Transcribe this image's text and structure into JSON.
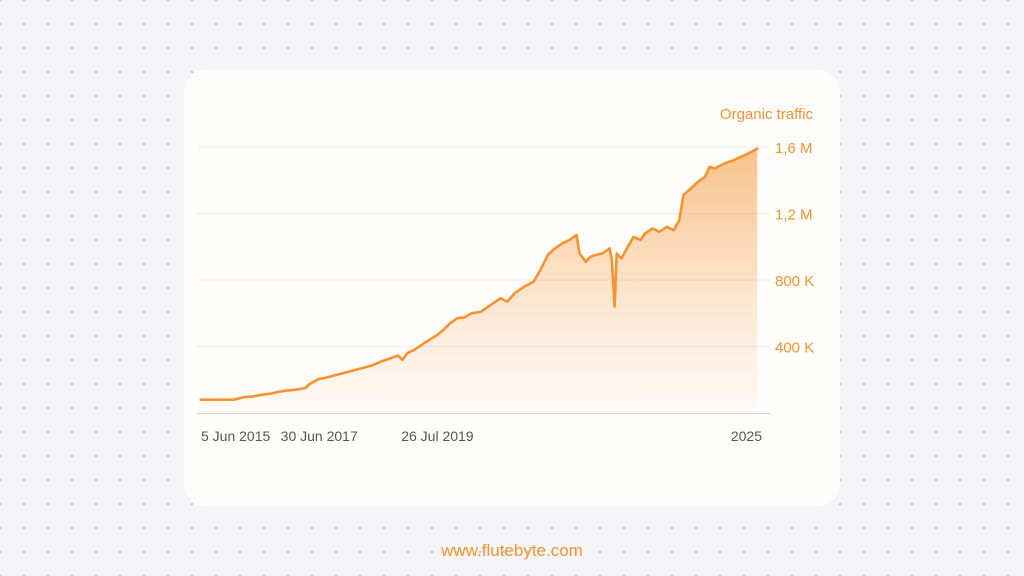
{
  "footer": {
    "url": "www.flutebyte.com"
  },
  "colors": {
    "accent": "#f6922f",
    "tick_text": "#555555",
    "grid": "#ececec"
  },
  "chart_data": {
    "type": "area",
    "ylabel": "Organic traffic",
    "y_tick_labels": [
      "400 K",
      "800 K",
      "1,2 M",
      "1,6 M"
    ],
    "y_tick_values": [
      400000,
      800000,
      1200000,
      1600000
    ],
    "ylim": [
      0,
      1600000
    ],
    "x_tick_labels": [
      "5 Jun 2015",
      "30 Jun 2017",
      "26 Jul 2019",
      "2025"
    ],
    "x_tick_values": [
      "2015-06-05",
      "2017-06-30",
      "2019-07-26",
      "2025-01-01"
    ],
    "xlim": [
      "2015-06-05",
      "2025-04-01"
    ],
    "grid": true,
    "series": [
      {
        "points": [
          [
            "2015-06-05",
            80000
          ],
          [
            "2015-10-01",
            80000
          ],
          [
            "2016-01-01",
            80000
          ],
          [
            "2016-03-01",
            95000
          ],
          [
            "2016-05-01",
            100000
          ],
          [
            "2016-07-01",
            110000
          ],
          [
            "2016-09-01",
            118000
          ],
          [
            "2016-10-01",
            125000
          ],
          [
            "2016-12-01",
            135000
          ],
          [
            "2017-02-01",
            140000
          ],
          [
            "2017-04-01",
            150000
          ],
          [
            "2017-05-01",
            175000
          ],
          [
            "2017-06-30",
            205000
          ],
          [
            "2017-08-01",
            210000
          ],
          [
            "2017-10-01",
            225000
          ],
          [
            "2017-12-01",
            240000
          ],
          [
            "2018-02-01",
            255000
          ],
          [
            "2018-04-01",
            270000
          ],
          [
            "2018-06-01",
            285000
          ],
          [
            "2018-08-01",
            310000
          ],
          [
            "2018-10-01",
            330000
          ],
          [
            "2018-11-15",
            345000
          ],
          [
            "2018-12-15",
            320000
          ],
          [
            "2019-01-15",
            360000
          ],
          [
            "2019-03-01",
            380000
          ],
          [
            "2019-05-01",
            420000
          ],
          [
            "2019-07-26",
            470000
          ],
          [
            "2019-09-01",
            500000
          ],
          [
            "2019-10-15",
            540000
          ],
          [
            "2019-12-01",
            570000
          ],
          [
            "2020-01-15",
            575000
          ],
          [
            "2020-03-01",
            600000
          ],
          [
            "2020-05-01",
            610000
          ],
          [
            "2020-07-01",
            650000
          ],
          [
            "2020-09-01",
            690000
          ],
          [
            "2020-10-15",
            670000
          ],
          [
            "2020-12-01",
            720000
          ],
          [
            "2021-02-01",
            760000
          ],
          [
            "2021-04-01",
            790000
          ],
          [
            "2021-05-15",
            860000
          ],
          [
            "2021-07-01",
            950000
          ],
          [
            "2021-08-15",
            990000
          ],
          [
            "2021-10-01",
            1020000
          ],
          [
            "2021-11-15",
            1040000
          ],
          [
            "2022-01-01",
            1070000
          ],
          [
            "2022-01-20",
            960000
          ],
          [
            "2022-03-01",
            910000
          ],
          [
            "2022-04-01",
            940000
          ],
          [
            "2022-05-01",
            950000
          ],
          [
            "2022-06-15",
            960000
          ],
          [
            "2022-08-01",
            990000
          ],
          [
            "2022-08-15",
            920000
          ],
          [
            "2022-09-01",
            640000
          ],
          [
            "2022-09-15",
            960000
          ],
          [
            "2022-10-15",
            930000
          ],
          [
            "2022-12-01",
            1010000
          ],
          [
            "2023-01-01",
            1060000
          ],
          [
            "2023-02-15",
            1040000
          ],
          [
            "2023-03-15",
            1080000
          ],
          [
            "2023-05-01",
            1110000
          ],
          [
            "2023-06-15",
            1090000
          ],
          [
            "2023-08-01",
            1120000
          ],
          [
            "2023-09-15",
            1100000
          ],
          [
            "2023-10-20",
            1160000
          ],
          [
            "2023-11-15",
            1310000
          ],
          [
            "2024-01-01",
            1350000
          ],
          [
            "2024-02-15",
            1390000
          ],
          [
            "2024-04-01",
            1420000
          ],
          [
            "2024-05-01",
            1480000
          ],
          [
            "2024-06-01",
            1470000
          ],
          [
            "2024-08-01",
            1500000
          ],
          [
            "2024-10-01",
            1520000
          ],
          [
            "2025-01-01",
            1560000
          ],
          [
            "2025-03-01",
            1590000
          ]
        ]
      }
    ]
  }
}
